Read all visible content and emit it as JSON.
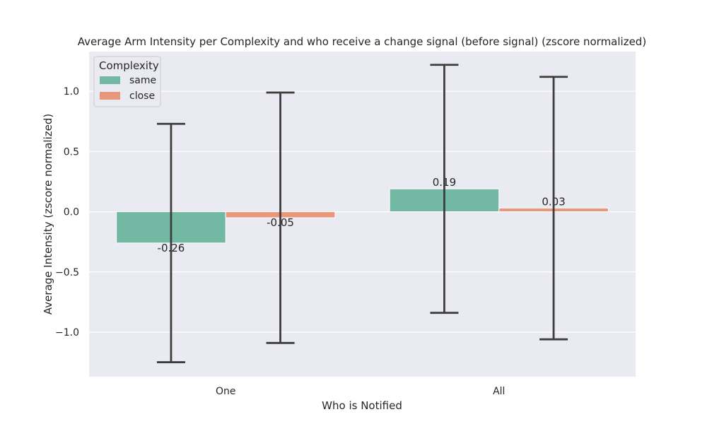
{
  "chart_data": {
    "type": "bar",
    "title": "Average Arm Intensity per Complexity and who receive a change signal (before signal) (zscore normalized)",
    "xlabel": "Who is Notified",
    "ylabel": "Average Intensity (zscore normalized)",
    "categories": [
      "One",
      "All"
    ],
    "ylim": [
      -1.37,
      1.33
    ],
    "yticks": [
      -1.0,
      -0.5,
      0.0,
      0.5,
      1.0
    ],
    "ytick_labels": [
      "−1.0",
      "−0.5",
      "0.0",
      "0.5",
      "1.0"
    ],
    "grid": true,
    "legend": {
      "title": "Complexity",
      "placement": "upper-left"
    },
    "series": [
      {
        "name": "same",
        "color": "#73b8a2",
        "values": [
          -0.26,
          0.19
        ],
        "labels": [
          "-0.26",
          "0.19"
        ],
        "error_low": [
          -1.25,
          -0.84
        ],
        "error_high": [
          0.73,
          1.22
        ]
      },
      {
        "name": "close",
        "color": "#e9977a",
        "values": [
          -0.05,
          0.03
        ],
        "labels": [
          "-0.05",
          "0.03"
        ],
        "error_low": [
          -1.09,
          -1.06
        ],
        "error_high": [
          0.99,
          1.12
        ]
      }
    ]
  }
}
